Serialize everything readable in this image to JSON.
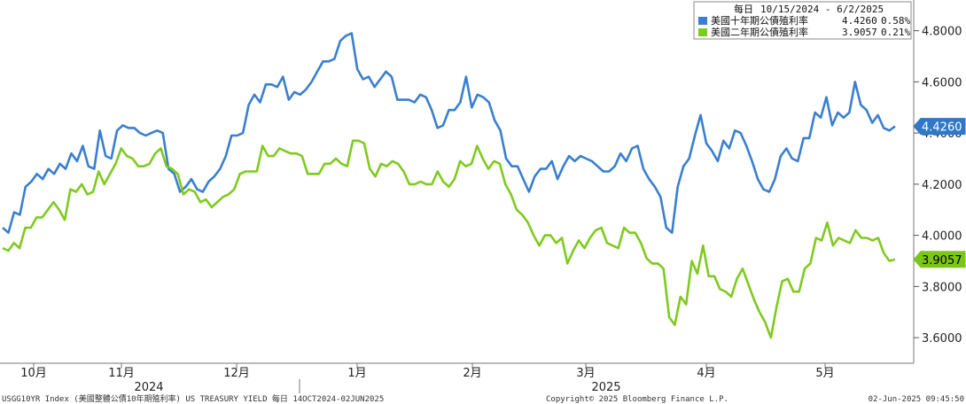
{
  "chart_data": {
    "type": "line",
    "title": "",
    "legend": {
      "period_label": "每日",
      "date_range": "10/15/2024 - 6/2/2025",
      "entries": [
        {
          "label": "美國十年期公債殖利率",
          "value": "4.4260",
          "change": "0.58%"
        },
        {
          "label": "美國二年期公債殖利率",
          "value": "3.9057",
          "change": "0.21%"
        }
      ],
      "placement": "top-right"
    },
    "colors": {
      "series_10y": "#3a7fcf",
      "series_2y": "#7fca1f"
    },
    "y_axis": {
      "position": "right",
      "ylim": [
        3.5,
        4.92
      ],
      "ticks": [
        "4.8000",
        "4.6000",
        "4.4000",
        "4.2000",
        "4.0000",
        "3.8000",
        "3.6000"
      ]
    },
    "x_axis": {
      "months": [
        "10月",
        "11月",
        "12月",
        "1月",
        "2月",
        "3月",
        "4月",
        "5月"
      ],
      "years": [
        "2024",
        "2025"
      ]
    },
    "last_value_labels": [
      "4.4260",
      "3.9057"
    ],
    "series": [
      {
        "name": "美國十年期公債殖利率",
        "values": [
          4.03,
          4.01,
          4.09,
          4.08,
          4.19,
          4.21,
          4.24,
          4.22,
          4.26,
          4.24,
          4.28,
          4.26,
          4.32,
          4.29,
          4.35,
          4.27,
          4.26,
          4.41,
          4.31,
          4.3,
          4.41,
          4.43,
          4.42,
          4.42,
          4.4,
          4.39,
          4.4,
          4.41,
          4.4,
          4.26,
          4.24,
          4.17,
          4.19,
          4.22,
          4.18,
          4.17,
          4.21,
          4.23,
          4.26,
          4.31,
          4.39,
          4.39,
          4.4,
          4.51,
          4.55,
          4.52,
          4.59,
          4.59,
          4.58,
          4.62,
          4.53,
          4.56,
          4.55,
          4.57,
          4.6,
          4.64,
          4.68,
          4.68,
          4.69,
          4.76,
          4.78,
          4.79,
          4.65,
          4.61,
          4.62,
          4.58,
          4.61,
          4.64,
          4.62,
          4.53,
          4.53,
          4.53,
          4.52,
          4.55,
          4.54,
          4.49,
          4.42,
          4.43,
          4.49,
          4.49,
          4.52,
          4.62,
          4.5,
          4.55,
          4.54,
          4.52,
          4.45,
          4.41,
          4.3,
          4.27,
          4.27,
          4.22,
          4.17,
          4.23,
          4.26,
          4.26,
          4.29,
          4.22,
          4.27,
          4.31,
          4.29,
          4.31,
          4.3,
          4.29,
          4.27,
          4.25,
          4.25,
          4.27,
          4.32,
          4.29,
          4.34,
          4.35,
          4.26,
          4.22,
          4.19,
          4.15,
          4.03,
          4.01,
          4.19,
          4.27,
          4.3,
          4.39,
          4.47,
          4.36,
          4.33,
          4.29,
          4.37,
          4.34,
          4.41,
          4.4,
          4.35,
          4.29,
          4.22,
          4.18,
          4.17,
          4.22,
          4.31,
          4.34,
          4.3,
          4.29,
          4.38,
          4.38,
          4.48,
          4.46,
          4.54,
          4.43,
          4.48,
          4.46,
          4.48,
          4.6,
          4.51,
          4.49,
          4.44,
          4.47,
          4.42,
          4.41,
          4.426
        ]
      },
      {
        "name": "美國二年期公債殖利率",
        "values": [
          3.95,
          3.94,
          3.97,
          3.95,
          4.03,
          4.03,
          4.07,
          4.07,
          4.1,
          4.13,
          4.1,
          4.06,
          4.18,
          4.17,
          4.2,
          4.16,
          4.17,
          4.25,
          4.2,
          4.24,
          4.28,
          4.34,
          4.31,
          4.3,
          4.27,
          4.27,
          4.28,
          4.32,
          4.34,
          4.27,
          4.26,
          4.24,
          4.16,
          4.18,
          4.17,
          4.13,
          4.14,
          4.11,
          4.13,
          4.15,
          4.16,
          4.18,
          4.24,
          4.25,
          4.25,
          4.25,
          4.35,
          4.31,
          4.31,
          4.34,
          4.33,
          4.32,
          4.32,
          4.31,
          4.24,
          4.24,
          4.24,
          4.28,
          4.28,
          4.3,
          4.28,
          4.27,
          4.37,
          4.37,
          4.36,
          4.26,
          4.23,
          4.28,
          4.27,
          4.29,
          4.28,
          4.25,
          4.2,
          4.2,
          4.21,
          4.2,
          4.2,
          4.25,
          4.21,
          4.19,
          4.22,
          4.29,
          4.27,
          4.28,
          4.35,
          4.3,
          4.26,
          4.29,
          4.28,
          4.2,
          4.16,
          4.1,
          4.08,
          4.05,
          4.0,
          3.96,
          4.0,
          4.0,
          3.97,
          3.99,
          3.89,
          3.94,
          3.98,
          3.95,
          3.99,
          4.02,
          4.03,
          3.97,
          3.96,
          3.95,
          4.03,
          4.01,
          4.01,
          3.97,
          3.91,
          3.89,
          3.89,
          3.87,
          3.68,
          3.65,
          3.76,
          3.73,
          3.9,
          3.85,
          3.96,
          3.84,
          3.84,
          3.79,
          3.78,
          3.76,
          3.83,
          3.87,
          3.81,
          3.75,
          3.7,
          3.66,
          3.6,
          3.72,
          3.82,
          3.83,
          3.78,
          3.78,
          3.87,
          3.89,
          3.99,
          3.98,
          4.05,
          3.96,
          3.99,
          3.98,
          3.97,
          4.02,
          3.99,
          3.99,
          3.98,
          3.99,
          3.93,
          3.9,
          3.906
        ]
      }
    ]
  },
  "footer": {
    "left": "USGG10YR Index (美國整體公債10年期殖利率) US TREASURY YIELD  每日 14OCT2024-02JUN2025",
    "center": "Copyright© 2025 Bloomberg Finance L.P.",
    "right": "02-Jun-2025 09:45:50"
  }
}
